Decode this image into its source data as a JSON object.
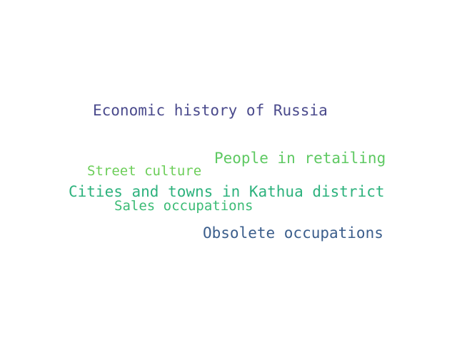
{
  "words": [
    {
      "text": "Economic history of Russia",
      "color": "#4a4a8c"
    },
    {
      "text": "People in retailing",
      "color": "#5ec962"
    },
    {
      "text": "Street culture",
      "color": "#6cce59"
    },
    {
      "text": "Cities and towns in Kathua district",
      "color": "#2db27d"
    },
    {
      "text": "Sales occupations",
      "color": "#3bbb75"
    },
    {
      "text": "Obsolete occupations",
      "color": "#3b5e8c"
    }
  ]
}
